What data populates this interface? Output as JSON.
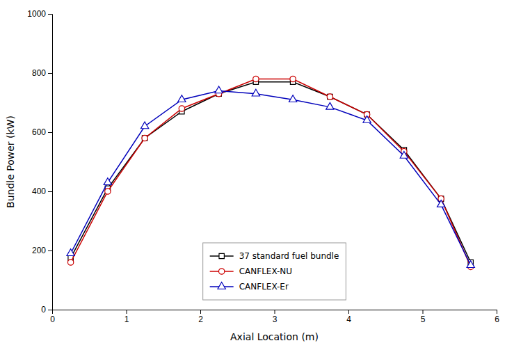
{
  "chart_data": {
    "type": "line",
    "xlabel": "Axial Location (m)",
    "ylabel": "Bundle Power (kW)",
    "series": [
      {
        "name": "37 standard fuel bundle",
        "color": "#000000",
        "marker": "square",
        "x": [
          0.25,
          0.75,
          1.25,
          1.75,
          2.25,
          2.75,
          3.25,
          3.75,
          4.25,
          4.75,
          5.25,
          5.65
        ],
        "values": [
          175,
          410,
          580,
          670,
          730,
          770,
          770,
          720,
          660,
          540,
          375,
          160
        ]
      },
      {
        "name": "CANFLEX-NU",
        "color": "#cc0000",
        "marker": "circle",
        "x": [
          0.25,
          0.75,
          1.25,
          1.75,
          2.25,
          2.75,
          3.25,
          3.75,
          4.25,
          4.75,
          5.25,
          5.65
        ],
        "values": [
          160,
          400,
          580,
          680,
          730,
          780,
          780,
          720,
          660,
          535,
          375,
          145
        ]
      },
      {
        "name": "CANFLEX-Er",
        "color": "#0000bb",
        "marker": "triangle",
        "x": [
          0.25,
          0.75,
          1.25,
          1.75,
          2.25,
          2.75,
          3.25,
          3.75,
          4.25,
          4.75,
          5.25,
          5.65
        ],
        "values": [
          190,
          430,
          620,
          710,
          740,
          730,
          710,
          685,
          640,
          520,
          355,
          150
        ]
      }
    ],
    "xlim": [
      0,
      6
    ],
    "ylim": [
      0,
      1000
    ],
    "xticks": [
      0,
      1,
      2,
      3,
      4,
      5,
      6
    ],
    "yticks": [
      0,
      200,
      400,
      600,
      800,
      1000
    ],
    "legend": "lower center"
  }
}
